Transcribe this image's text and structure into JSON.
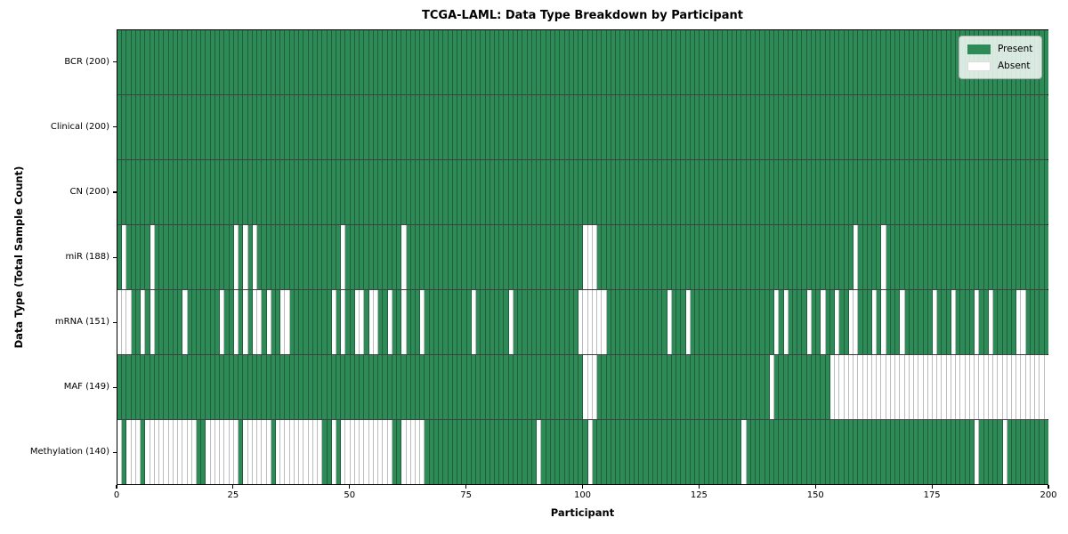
{
  "chart_data": {
    "type": "heatmap",
    "title": "TCGA-LAML: Data Type Breakdown by Participant",
    "xlabel": "Participant",
    "ylabel": "Data Type (Total Sample Count)",
    "xlim": [
      0,
      200
    ],
    "n_participants": 200,
    "x_ticks": [
      0,
      25,
      50,
      75,
      100,
      125,
      150,
      175,
      200
    ],
    "grid": "cell-borders",
    "legend": {
      "position": "upper-right",
      "present": "Present",
      "absent": "Absent"
    },
    "colors": {
      "present": "#2e8b57",
      "absent": "#ffffff"
    },
    "rows": [
      {
        "name": "BCR",
        "label": "BCR (200)",
        "count": 200,
        "absent": []
      },
      {
        "name": "Clinical",
        "label": "Clinical (200)",
        "count": 200,
        "absent": []
      },
      {
        "name": "CN",
        "label": "CN (200)",
        "count": 200,
        "absent": []
      },
      {
        "name": "miR",
        "label": "miR (188)",
        "count": 188,
        "absent": [
          1,
          7,
          25,
          27,
          29,
          48,
          61,
          100,
          101,
          102,
          158,
          164
        ]
      },
      {
        "name": "mRNA",
        "label": "mRNA (151)",
        "count": 151,
        "absent": [
          0,
          1,
          2,
          5,
          7,
          14,
          22,
          25,
          27,
          29,
          30,
          32,
          35,
          36,
          46,
          48,
          51,
          52,
          54,
          55,
          58,
          61,
          65,
          76,
          84,
          99,
          100,
          101,
          102,
          103,
          104,
          118,
          122,
          141,
          143,
          148,
          151,
          154,
          157,
          158,
          162,
          164,
          168,
          175,
          179,
          184,
          187,
          193,
          194
        ]
      },
      {
        "name": "MAF",
        "label": "MAF (149)",
        "count": 149,
        "absent": [
          100,
          101,
          102,
          140,
          153,
          154,
          155,
          156,
          157,
          158,
          159,
          160,
          161,
          162,
          163,
          164,
          165,
          166,
          167,
          168,
          169,
          170,
          171,
          172,
          173,
          174,
          175,
          176,
          177,
          178,
          179,
          180,
          181,
          182,
          183,
          184,
          185,
          186,
          187,
          188,
          189,
          190,
          191,
          192,
          193,
          194,
          195,
          196,
          197,
          198,
          199
        ]
      },
      {
        "name": "Methylation",
        "label": "Methylation (140)",
        "count": 140,
        "absent": [
          0,
          2,
          3,
          4,
          6,
          7,
          8,
          9,
          10,
          11,
          12,
          13,
          14,
          15,
          16,
          19,
          20,
          21,
          22,
          23,
          24,
          25,
          27,
          28,
          29,
          30,
          31,
          32,
          34,
          35,
          36,
          37,
          38,
          39,
          40,
          41,
          42,
          43,
          46,
          48,
          49,
          50,
          51,
          52,
          53,
          54,
          55,
          56,
          57,
          58,
          61,
          62,
          63,
          64,
          65,
          90,
          101,
          134,
          184,
          190
        ]
      }
    ]
  }
}
